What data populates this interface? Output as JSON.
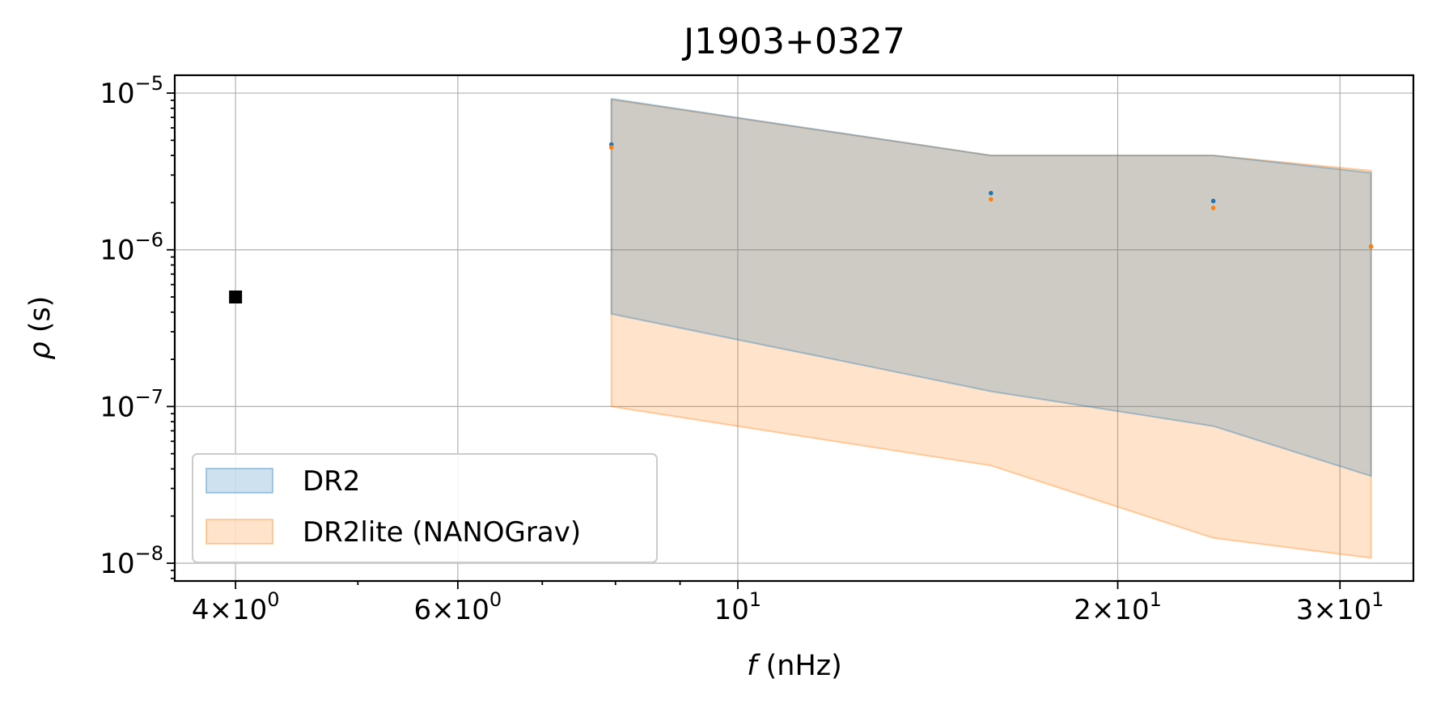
{
  "chart_data": {
    "type": "area",
    "title": "J1903+0327",
    "xlabel": "f (nHz)",
    "ylabel": "ρ (s)",
    "xscale": "log",
    "yscale": "log",
    "xlim": [
      3.58,
      34.3
    ],
    "ylim": [
      7.7e-09,
      1.3e-05
    ],
    "grid": true,
    "legend_position": "lower-left",
    "x_major_ticks": [
      {
        "value": 4,
        "mant": "4",
        "base": "10",
        "exp": "0"
      },
      {
        "value": 6,
        "mant": "6",
        "base": "10",
        "exp": "0"
      },
      {
        "value": 10,
        "mant": "",
        "base": "10",
        "exp": "1"
      },
      {
        "value": 20,
        "mant": "2",
        "base": "10",
        "exp": "1"
      },
      {
        "value": 30,
        "mant": "3",
        "base": "10",
        "exp": "1"
      }
    ],
    "y_major_ticks": [
      {
        "value": 1e-05,
        "base": "10",
        "exp": "−5"
      },
      {
        "value": 1e-06,
        "base": "10",
        "exp": "−6"
      },
      {
        "value": 1e-07,
        "base": "10",
        "exp": "−7"
      },
      {
        "value": 1e-08,
        "base": "10",
        "exp": "−8"
      }
    ],
    "series": [
      {
        "name": "DR2",
        "color": "#1f77b4",
        "x": [
          7.94,
          15.87,
          23.81,
          31.75
        ],
        "upper": [
          9.2e-06,
          4e-06,
          4e-06,
          3.1e-06
        ],
        "lower": [
          3.9e-07,
          1.25e-07,
          7.5e-08,
          3.6e-08
        ],
        "points": [
          4.7e-06,
          2.3e-06,
          2.05e-06,
          1.05e-06
        ]
      },
      {
        "name": "DR2lite (NANOGrav)",
        "color": "#ff7f0e",
        "x": [
          7.94,
          15.87,
          23.81,
          31.75
        ],
        "upper": [
          9.1e-06,
          4e-06,
          4e-06,
          3.2e-06
        ],
        "lower": [
          1e-07,
          4.2e-08,
          1.45e-08,
          1.08e-08
        ],
        "points": [
          4.5e-06,
          2.1e-06,
          1.85e-06,
          1.05e-06
        ]
      }
    ],
    "markers": [
      {
        "x": 4.0,
        "y": 5e-07,
        "shape": "square",
        "color": "#000000"
      }
    ]
  }
}
